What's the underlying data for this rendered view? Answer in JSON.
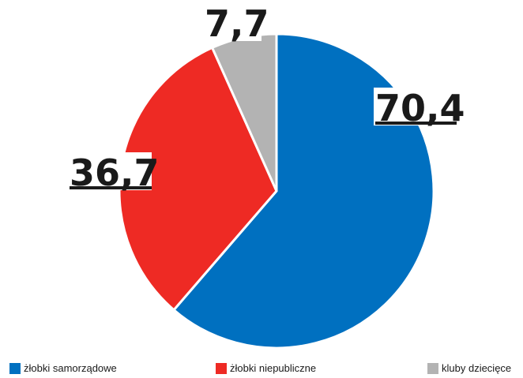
{
  "chart_data": {
    "type": "pie",
    "slices": [
      {
        "label": "żłobki samorządowe",
        "value": 70.4,
        "value_text": "70,4",
        "color": "#0070C0"
      },
      {
        "label": "żłobki niepubliczne",
        "value": 36.7,
        "value_text": "36,7",
        "color": "#EE2A24"
      },
      {
        "label": "kluby dziecięce",
        "value": 7.7,
        "value_text": "7,7",
        "color": "#B3B3B3"
      }
    ],
    "legend_position": "bottom",
    "start_angle": "top",
    "direction": "clockwise"
  }
}
